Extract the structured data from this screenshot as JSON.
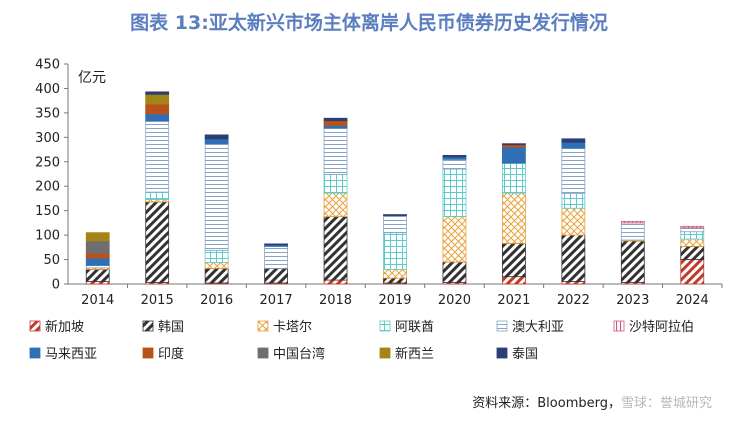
{
  "title": "图表 13:亚太新兴市场主体离岸人民币债券历史发行情况",
  "source_text": "资料来源：Bloomberg，",
  "watermark_text": "雪球：誉城研究",
  "chart_data": {
    "type": "bar",
    "stacked": true,
    "unit_label": "亿元",
    "ylim": [
      0,
      450
    ],
    "yticks": [
      0,
      50,
      100,
      150,
      200,
      250,
      300,
      350,
      400,
      450
    ],
    "categories": [
      "2014",
      "2015",
      "2016",
      "2017",
      "2018",
      "2019",
      "2020",
      "2021",
      "2022",
      "2023",
      "2024"
    ],
    "series": [
      {
        "name": "新加坡",
        "color": "#c0392b",
        "pattern": "hatch-red",
        "values": [
          5,
          3,
          2,
          2,
          8,
          2,
          3,
          15,
          5,
          3,
          50
        ]
      },
      {
        "name": "韩国",
        "color": "#333333",
        "pattern": "hatch-dark",
        "values": [
          25,
          165,
          30,
          30,
          130,
          10,
          42,
          68,
          95,
          85,
          27
        ]
      },
      {
        "name": "卡塔尔",
        "color": "#e8a33d",
        "pattern": "cross-orange",
        "values": [
          3,
          5,
          12,
          0,
          48,
          18,
          93,
          103,
          55,
          2,
          15
        ]
      },
      {
        "name": "阿联酋",
        "color": "#5ccbcb",
        "pattern": "grid-teal",
        "values": [
          0,
          15,
          25,
          0,
          38,
          75,
          97,
          61,
          30,
          0,
          15
        ]
      },
      {
        "name": "澳大利亚",
        "color": "#8aa4c8",
        "pattern": "lines-blue",
        "values": [
          5,
          145,
          218,
          45,
          95,
          35,
          20,
          0,
          93,
          35,
          8
        ]
      },
      {
        "name": "沙特阿拉伯",
        "color": "#d25a7a",
        "pattern": "vlines-pink",
        "values": [
          0,
          0,
          0,
          0,
          0,
          0,
          0,
          0,
          0,
          3,
          3
        ]
      },
      {
        "name": "马来西亚",
        "color": "#2f6fb5",
        "pattern": "solid",
        "values": [
          15,
          15,
          10,
          3,
          5,
          0,
          5,
          33,
          12,
          0,
          0
        ]
      },
      {
        "name": "印度",
        "color": "#b7521b",
        "pattern": "solid",
        "values": [
          10,
          20,
          0,
          0,
          10,
          0,
          0,
          5,
          0,
          0,
          0
        ]
      },
      {
        "name": "中国台湾",
        "color": "#6e6e6e",
        "pattern": "solid",
        "values": [
          25,
          0,
          0,
          0,
          0,
          0,
          0,
          0,
          0,
          0,
          0
        ]
      },
      {
        "name": "新西兰",
        "color": "#a38415",
        "pattern": "solid",
        "values": [
          17,
          20,
          0,
          0,
          0,
          0,
          0,
          0,
          0,
          0,
          0
        ]
      },
      {
        "name": "泰国",
        "color": "#2b3e76",
        "pattern": "solid",
        "values": [
          0,
          5,
          8,
          2,
          5,
          2,
          3,
          2,
          7,
          0,
          0
        ]
      }
    ]
  }
}
